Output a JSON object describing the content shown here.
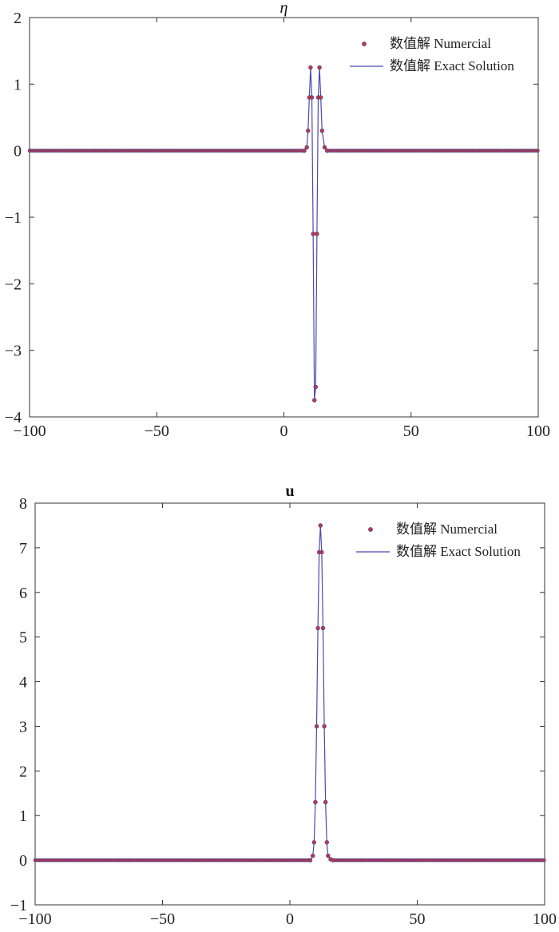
{
  "colors": {
    "numerical_marker_fill": "#c0394b",
    "numerical_marker_stroke": "#3b3b8f",
    "exact_line": "#4a4ab0",
    "axes": "#333333"
  },
  "chart_data": [
    {
      "type": "line",
      "title": "η",
      "xlabel": "",
      "ylabel": "",
      "xlim": [
        -100,
        100
      ],
      "ylim": [
        -4,
        2
      ],
      "xticks": [
        -100,
        -50,
        0,
        50,
        100
      ],
      "xtick_labels": [
        "−100",
        "−50",
        "0",
        "50",
        "100"
      ],
      "yticks": [
        -4,
        -3,
        -2,
        -1,
        0,
        1,
        2
      ],
      "ytick_labels": [
        "−4",
        "−3",
        "−2",
        "−1",
        "0",
        "1",
        "2"
      ],
      "legend": {
        "position": "top-right",
        "entries": [
          "数值解 Numercial",
          "数值解 Exact Solution"
        ]
      },
      "series": [
        {
          "name": "数值解 Numercial",
          "style": "markers",
          "x": [
            8,
            9,
            9.5,
            10,
            10.5,
            11,
            11.5,
            12,
            12.5,
            13,
            13.5,
            14,
            14.5,
            15,
            16,
            17
          ],
          "y": [
            0,
            0.05,
            0.3,
            0.8,
            1.25,
            0.8,
            -1.25,
            -3.75,
            -3.55,
            -1.25,
            0.8,
            1.25,
            0.8,
            0.3,
            0.05,
            0
          ]
        },
        {
          "name": "数值解 Exact Solution",
          "style": "line",
          "x": [
            8,
            9,
            9.5,
            10,
            10.5,
            11,
            11.5,
            12,
            12.5,
            13,
            13.5,
            14,
            14.5,
            15,
            16,
            17
          ],
          "y": [
            0,
            0.05,
            0.3,
            0.8,
            1.25,
            0.8,
            -1.25,
            -3.75,
            -3.55,
            -1.25,
            0.8,
            1.25,
            0.8,
            0.3,
            0.05,
            0
          ]
        }
      ]
    },
    {
      "type": "line",
      "title": "u",
      "xlabel": "",
      "ylabel": "",
      "xlim": [
        -100,
        100
      ],
      "ylim": [
        -1,
        8
      ],
      "xticks": [
        -100,
        -50,
        0,
        50,
        100
      ],
      "xtick_labels": [
        "−100",
        "−50",
        "0",
        "50",
        "100"
      ],
      "yticks": [
        -1,
        0,
        1,
        2,
        3,
        4,
        5,
        6,
        7,
        8
      ],
      "ytick_labels": [
        "−1",
        "0",
        "1",
        "2",
        "3",
        "4",
        "5",
        "6",
        "7",
        "8"
      ],
      "legend": {
        "position": "top-right",
        "entries": [
          "数值解 Numercial",
          "数值解 Exact Solution"
        ]
      },
      "series": [
        {
          "name": "数值解 Numercial",
          "style": "markers",
          "x": [
            8,
            9,
            9.5,
            10,
            10.5,
            11,
            11.5,
            12,
            12.5,
            13,
            13.5,
            14,
            14.5,
            15,
            16,
            17
          ],
          "y": [
            0,
            0.1,
            0.4,
            1.3,
            3.0,
            5.2,
            6.9,
            7.5,
            6.9,
            5.2,
            3.0,
            1.3,
            0.4,
            0.1,
            0.02,
            0
          ]
        },
        {
          "name": "数值解 Exact Solution",
          "style": "line",
          "x": [
            8,
            9,
            9.5,
            10,
            10.5,
            11,
            11.5,
            12,
            12.5,
            13,
            13.5,
            14,
            14.5,
            15,
            16,
            17
          ],
          "y": [
            0,
            0.1,
            0.4,
            1.3,
            3.0,
            5.2,
            6.9,
            7.5,
            6.9,
            5.2,
            3.0,
            1.3,
            0.4,
            0.1,
            0.02,
            0
          ]
        }
      ]
    }
  ]
}
